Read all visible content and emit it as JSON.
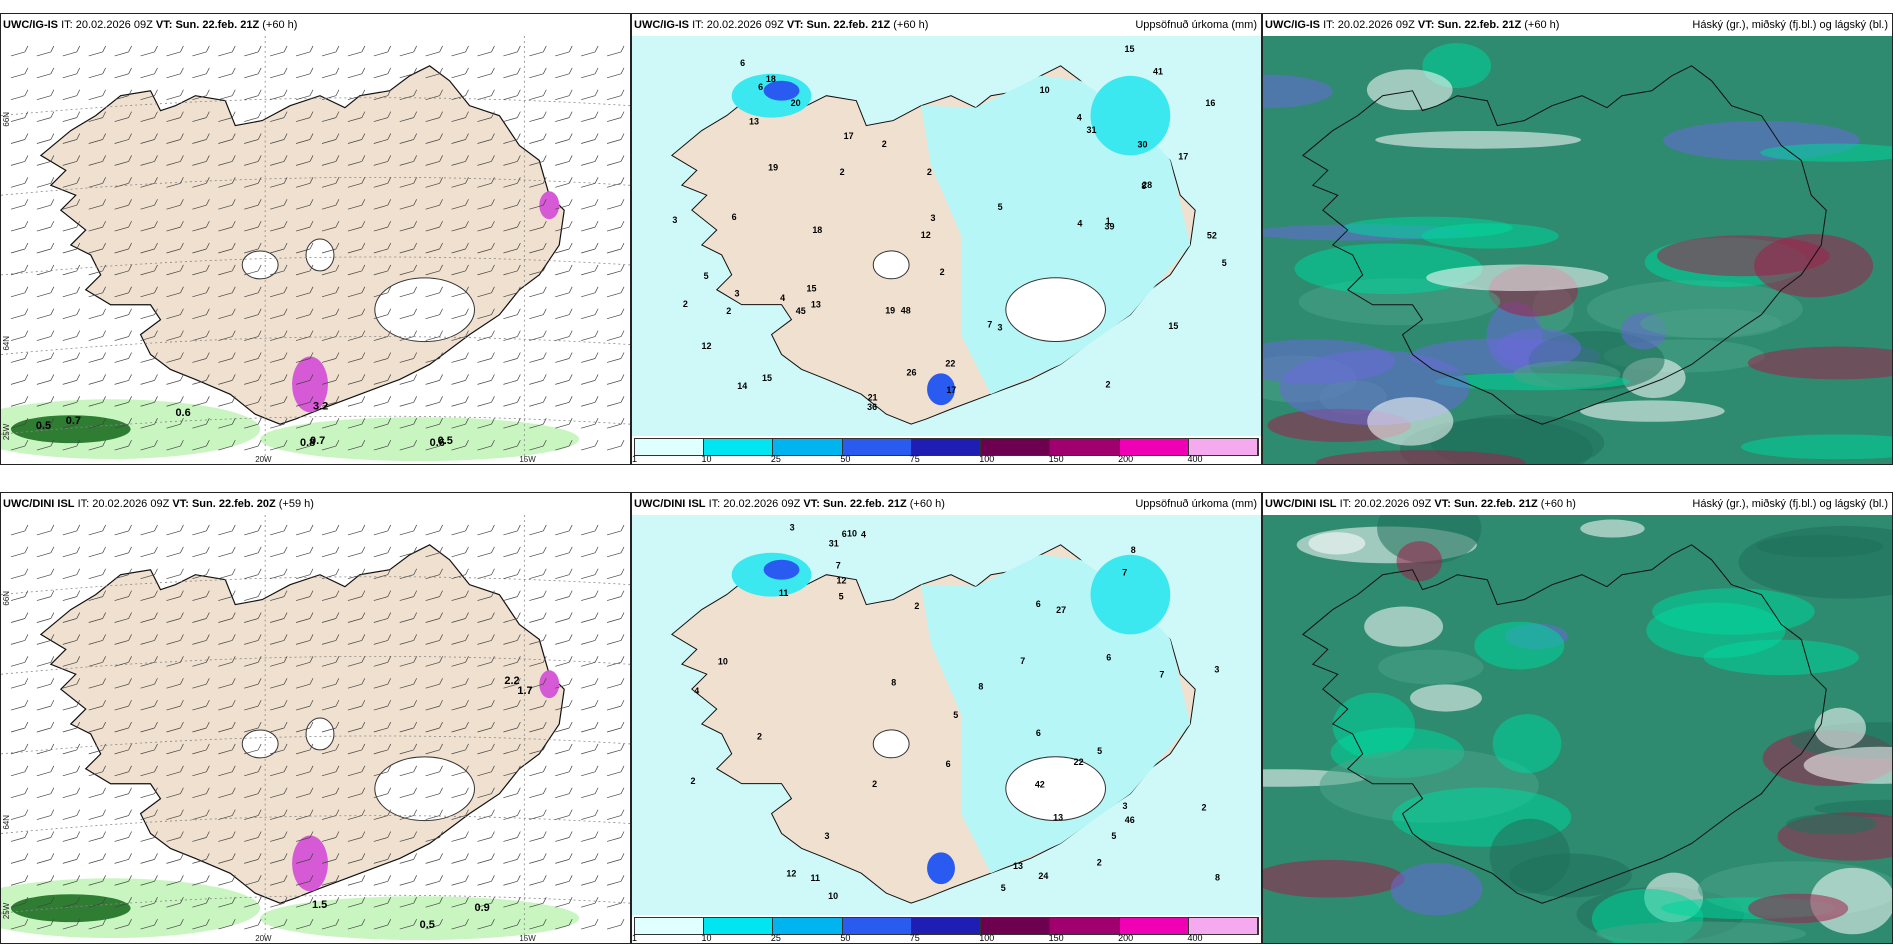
{
  "panels": [
    {
      "model": "UWC/IG-IS",
      "it_label": "IT:",
      "it": "20.02.2026 09Z",
      "vt_label": "VT:",
      "vt": "Sun. 22.feb. 21Z",
      "lead": "(+60 h)",
      "right": "",
      "labels": [
        "0.5",
        "0.7",
        "0.6",
        "0.8",
        "0.7",
        "0.6",
        "0.5",
        "3.2"
      ],
      "axis": {
        "lat1": "66N",
        "lat2": "64N",
        "lat3": "25W",
        "lon1": "20W",
        "lon2": "15W"
      }
    },
    {
      "model": "UWC/IG-IS",
      "it_label": "IT:",
      "it": "20.02.2026 09Z",
      "vt_label": "VT:",
      "vt": "Sun. 22.feb. 21Z",
      "lead": "(+60 h)",
      "right": "Uppsöfnuð úrkoma (mm)",
      "labels": [
        "4",
        "2",
        "1",
        "2",
        "22",
        "2",
        "12",
        "4",
        "48",
        "52",
        "45",
        "20",
        "21",
        "17",
        "14",
        "16",
        "3",
        "2",
        "6",
        "5",
        "7",
        "13",
        "15",
        "39",
        "19",
        "15",
        "26",
        "19",
        "41",
        "30",
        "28",
        "17",
        "36",
        "4",
        "3",
        "2",
        "6",
        "5",
        "2",
        "3",
        "10",
        "8",
        "5",
        "18",
        "2",
        "12",
        "18",
        "6",
        "3",
        "31",
        "13",
        "15",
        "17",
        "15"
      ]
    },
    {
      "model": "UWC/IG-IS",
      "it_label": "IT:",
      "it": "20.02.2026 09Z",
      "vt_label": "VT:",
      "vt": "Sun. 22.feb. 21Z",
      "lead": "(+60 h)",
      "right": "Háský (gr.), miðský (fj.bl.) og lágský (bl.)"
    },
    {
      "model": "UWC/DINI ISL",
      "it_label": "IT:",
      "it": "20.02.2026 09Z",
      "vt_label": "VT:",
      "vt": "Sun. 22.feb. 20Z",
      "lead": "(+59 h)",
      "right": "",
      "labels": [
        "0.5",
        "0.9",
        "1.5",
        "2.2",
        "1.7"
      ],
      "axis": {
        "lat1": "66N",
        "lat2": "64N",
        "lat3": "25W",
        "lon1": "20W",
        "lon2": "15W"
      }
    },
    {
      "model": "UWC/DINI ISL",
      "it_label": "IT:",
      "it": "20.02.2026 09Z",
      "vt_label": "VT:",
      "vt": "Sun. 22.feb. 21Z",
      "lead": "(+60 h)",
      "right": "Uppsöfnuð úrkoma (mm)",
      "labels": [
        "2",
        "2",
        "6",
        "13",
        "11",
        "42",
        "46",
        "10",
        "7",
        "2",
        "2",
        "2",
        "4",
        "5",
        "3",
        "3",
        "8",
        "6",
        "5",
        "7",
        "12",
        "10",
        "11",
        "27",
        "22",
        "31",
        "3",
        "4",
        "6",
        "7",
        "5",
        "6",
        "10",
        "8",
        "24",
        "8",
        "7",
        "6",
        "5",
        "13",
        "3",
        "8",
        "12",
        "2",
        "5"
      ]
    },
    {
      "model": "UWC/DINI ISL",
      "it_label": "IT:",
      "it": "20.02.2026 09Z",
      "vt_label": "VT:",
      "vt": "Sun. 22.feb. 21Z",
      "lead": "(+60 h)",
      "right": "Háský (gr.), miðský (fj.bl.) og lágský (bl.)"
    }
  ],
  "legend": {
    "ticks": [
      "1",
      "10",
      "25",
      "50",
      "75",
      "100",
      "150",
      "200",
      "400"
    ],
    "colors": [
      "#e0ffff",
      "#00e6f0",
      "#00b4f0",
      "#2a5bf0",
      "#1e1eb4",
      "#6e0050",
      "#a0006e",
      "#f000b4",
      "#f5aaf0"
    ]
  },
  "colors": {
    "land": "#efe0cf",
    "precip_light": "#b6f6f6",
    "precip_mid": "#3ce8f0",
    "cloud_high": "#2e8b6f",
    "cloud_bright": "#00d69b",
    "cloud_white": "#ffffff",
    "cloud_blue": "#6a6ad8",
    "cloud_red": "#a0204a"
  }
}
